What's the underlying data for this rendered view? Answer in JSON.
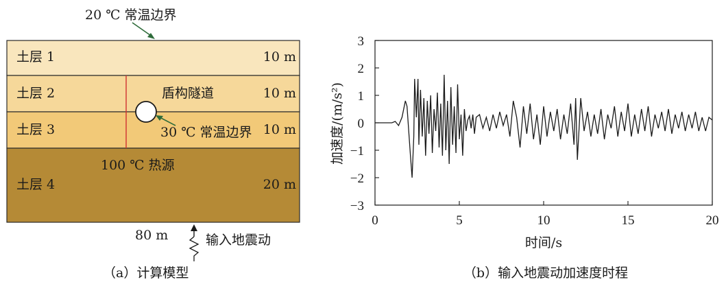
{
  "model": {
    "top_boundary": "20 ℃ 常温边界",
    "layers": [
      {
        "name": "土层 1",
        "thickness": "10 m",
        "color": "#f9e6bd"
      },
      {
        "name": "土层 2",
        "thickness": "10 m",
        "color": "#f6d89a"
      },
      {
        "name": "土层 3",
        "thickness": "10 m",
        "color": "#f2c978"
      },
      {
        "name": "土层 4",
        "thickness": "20 m",
        "color": "#b58a36"
      }
    ],
    "tunnel_label": "盾构隧道",
    "tunnel_boundary": "30 ℃ 常温边界",
    "heat_source": "100 ℃ 热源",
    "width": "80 m",
    "input_label": "输入地震动",
    "caption": "（a）计算模型",
    "colors": {
      "divider_line": "#d03030",
      "annotation_arrow": "#2e6b3a"
    }
  },
  "chart_data": {
    "type": "line",
    "xlabel": "时间/s",
    "ylabel": "加速度/(m/s²)",
    "xlim": [
      0,
      20
    ],
    "ylim": [
      -3,
      3
    ],
    "xticks": [
      "0",
      "5",
      "10",
      "15",
      "20"
    ],
    "yticks": [
      "3",
      "2",
      "1",
      "0",
      "−1",
      "−2",
      "−3"
    ],
    "caption": "（b）输入地震动加速度时程",
    "series": [
      {
        "x": [
          0,
          0.5,
          1.0,
          1.2,
          1.4,
          1.6,
          1.8,
          1.9,
          2.0,
          2.1,
          2.2,
          2.3,
          2.35,
          2.45,
          2.55,
          2.6,
          2.7,
          2.8,
          2.9,
          3.0,
          3.1,
          3.2,
          3.3,
          3.4,
          3.5,
          3.6,
          3.7,
          3.8,
          3.9,
          4.0,
          4.1,
          4.2,
          4.3,
          4.4,
          4.5,
          4.6,
          4.7,
          4.8,
          4.9,
          5.0,
          5.1,
          5.2,
          5.3,
          5.4,
          5.5,
          5.6,
          5.7,
          5.8,
          5.9,
          6.0,
          6.2,
          6.4,
          6.6,
          6.8,
          7.0,
          7.2,
          7.4,
          7.6,
          7.8,
          8.0,
          8.2,
          8.4,
          8.6,
          8.8,
          9.0,
          9.2,
          9.4,
          9.6,
          9.8,
          10.0,
          10.2,
          10.4,
          10.6,
          10.8,
          11.0,
          11.2,
          11.4,
          11.6,
          11.8,
          11.9,
          12.0,
          12.2,
          12.4,
          12.6,
          12.8,
          13.0,
          13.2,
          13.4,
          13.6,
          13.8,
          14.0,
          14.2,
          14.4,
          14.6,
          14.8,
          15.0,
          15.2,
          15.4,
          15.6,
          15.8,
          16.0,
          16.2,
          16.4,
          16.6,
          16.8,
          17.0,
          17.2,
          17.4,
          17.6,
          17.8,
          18.0,
          18.2,
          18.4,
          18.6,
          18.8,
          19.0,
          19.2,
          19.4,
          19.6,
          19.8,
          20.0
        ],
        "y": [
          0,
          0,
          0,
          0.05,
          -0.1,
          0.2,
          0.8,
          0.6,
          -0.3,
          -1.2,
          -2.0,
          -0.5,
          1.6,
          0.2,
          1.6,
          -0.8,
          1.2,
          -0.5,
          0.9,
          -1.2,
          0.8,
          -0.4,
          1.0,
          -1.1,
          0.5,
          -0.3,
          1.1,
          -0.9,
          0.7,
          -1.2,
          1.75,
          -1.0,
          0.8,
          -1.5,
          1.3,
          -0.8,
          0.6,
          -1.1,
          1.4,
          -0.6,
          0.3,
          -1.2,
          0.5,
          -0.3,
          0.1,
          0.25,
          -0.2,
          0.3,
          -0.4,
          0.2,
          0.3,
          -0.2,
          0.2,
          -0.3,
          0.3,
          -0.2,
          0.4,
          -0.1,
          0.3,
          -0.5,
          0.8,
          0.2,
          -0.9,
          0.6,
          -0.4,
          0.7,
          -0.6,
          0.3,
          -0.8,
          0.6,
          -0.5,
          0.4,
          -0.3,
          0.5,
          -0.6,
          0.3,
          -0.4,
          0.7,
          -0.8,
          0.9,
          -1.35,
          0.9,
          -0.3,
          0.4,
          -0.5,
          0.3,
          -0.4,
          0.5,
          -0.6,
          0.3,
          -0.2,
          0.6,
          -0.5,
          0.4,
          -0.3,
          0.7,
          -0.5,
          0.3,
          -0.4,
          0.5,
          -0.3,
          0.6,
          -0.5,
          0.3,
          -0.2,
          0.4,
          -0.3,
          0.5,
          -0.4,
          0.3,
          -0.2,
          0.4,
          -0.3,
          0.3,
          -0.2,
          0.4,
          -0.3,
          0.2,
          -0.3,
          0.2,
          0.1
        ]
      }
    ]
  }
}
